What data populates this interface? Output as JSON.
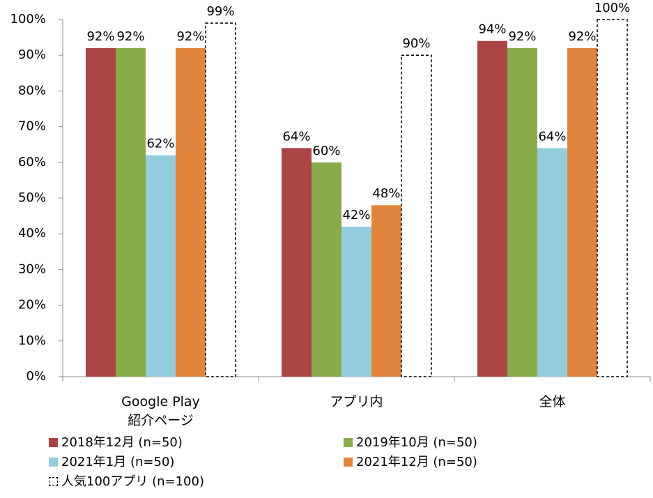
{
  "chart_data": {
    "type": "bar",
    "categories": [
      "Google Play\n紹介ページ",
      "アプリ内",
      "全体"
    ],
    "series": [
      {
        "name": "2018年12月 (n=50)",
        "color": "#ab4545",
        "values": [
          92,
          64,
          94
        ],
        "value_labels": [
          "92%",
          "64%",
          "94%"
        ]
      },
      {
        "name": "2019年10月 (n=50)",
        "color": "#8aab4c",
        "values": [
          92,
          60,
          92
        ],
        "value_labels": [
          "92%",
          "60%",
          "92%"
        ]
      },
      {
        "name": "2021年1月 (n=50)",
        "color": "#93cddd",
        "values": [
          62,
          42,
          64
        ],
        "value_labels": [
          "62%",
          "42%",
          "64%"
        ]
      },
      {
        "name": "2021年12月 (n=50)",
        "color": "#e0853d",
        "values": [
          92,
          48,
          92
        ],
        "value_labels": [
          "92%",
          "48%",
          "92%"
        ]
      },
      {
        "name": "人気100アプリ (n=100)",
        "color": "#ffffff",
        "line_style": "dashed",
        "values": [
          99,
          90,
          100
        ],
        "value_labels": [
          "99%",
          "90%",
          "100%"
        ]
      }
    ],
    "ylim": [
      0,
      100
    ],
    "yticks": [
      {
        "value": 0,
        "label": "0%"
      },
      {
        "value": 10,
        "label": "10%"
      },
      {
        "value": 20,
        "label": "20%"
      },
      {
        "value": 30,
        "label": "30%"
      },
      {
        "value": 40,
        "label": "40%"
      },
      {
        "value": 50,
        "label": "50%"
      },
      {
        "value": 60,
        "label": "60%"
      },
      {
        "value": 70,
        "label": "70%"
      },
      {
        "value": 80,
        "label": "80%"
      },
      {
        "value": 90,
        "label": "90%"
      },
      {
        "value": 100,
        "label": "100%"
      }
    ],
    "grid": false
  }
}
